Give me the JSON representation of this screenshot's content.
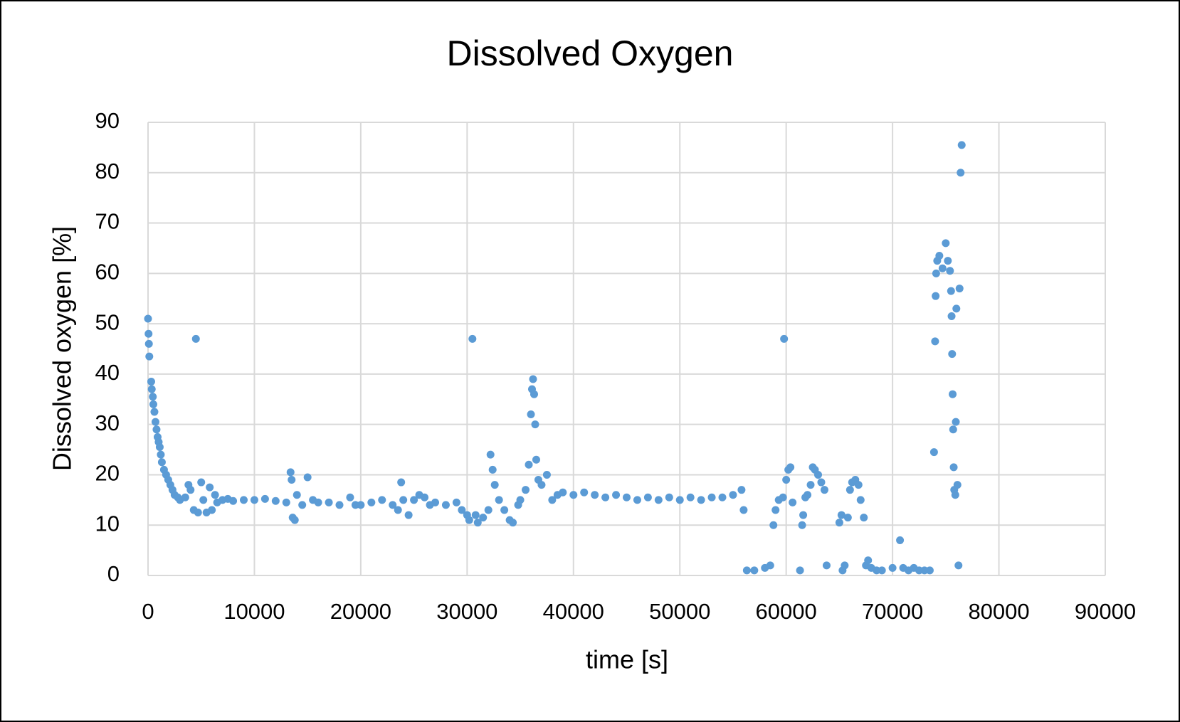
{
  "chart_data": {
    "type": "scatter",
    "title": "Dissolved Oxygen",
    "x_label": "time [s]",
    "y_label": "Dissolved oxygen [%]",
    "color": "#5b9bd5",
    "grid": true,
    "xlim": [
      0,
      90000
    ],
    "xticks": [
      0,
      10000,
      20000,
      30000,
      40000,
      50000,
      60000,
      70000,
      80000,
      90000
    ],
    "ylim": [
      0,
      90
    ],
    "yticks": [
      0,
      10,
      20,
      30,
      40,
      50,
      60,
      70,
      80,
      90
    ],
    "x": [
      0,
      50,
      80,
      120,
      300,
      350,
      450,
      500,
      600,
      700,
      800,
      900,
      1000,
      1100,
      1200,
      1300,
      1500,
      1700,
      1900,
      2100,
      2300,
      2500,
      2800,
      3000,
      3500,
      3800,
      4000,
      4300,
      4500,
      4700,
      5000,
      5200,
      5500,
      5800,
      6000,
      6300,
      6500,
      7000,
      7500,
      8000,
      9000,
      10000,
      11000,
      12000,
      13000,
      13400,
      13500,
      13600,
      13800,
      14000,
      14500,
      15000,
      15500,
      16000,
      17000,
      18000,
      19000,
      19500,
      20000,
      21000,
      22000,
      23000,
      23500,
      23800,
      24000,
      24500,
      25000,
      25500,
      26000,
      26500,
      27000,
      28000,
      29000,
      29500,
      30000,
      30200,
      30500,
      30800,
      31000,
      31500,
      32000,
      32200,
      32400,
      32600,
      33000,
      33500,
      34000,
      34300,
      34800,
      35000,
      35500,
      35800,
      36000,
      36100,
      36200,
      36300,
      36400,
      36500,
      36700,
      37000,
      37500,
      38000,
      38500,
      39000,
      40000,
      41000,
      42000,
      43000,
      44000,
      45000,
      46000,
      47000,
      48000,
      49000,
      50000,
      51000,
      52000,
      53000,
      54000,
      55000,
      55800,
      56000,
      56300,
      57000,
      58000,
      58500,
      58800,
      59000,
      59300,
      59700,
      59800,
      60000,
      60200,
      60400,
      60600,
      61300,
      61500,
      61600,
      61800,
      62000,
      62300,
      62500,
      62700,
      63000,
      63300,
      63600,
      63800,
      65000,
      65200,
      65300,
      65500,
      65800,
      66000,
      66200,
      66500,
      66800,
      67000,
      67300,
      67500,
      67700,
      68000,
      68500,
      69000,
      70000,
      70700,
      71000,
      71500,
      72000,
      72500,
      73000,
      73500,
      73900,
      74000,
      74050,
      74100,
      74200,
      74400,
      74700,
      75000,
      75200,
      75400,
      75500,
      75550,
      75600,
      75650,
      75700,
      75750,
      75800,
      75900,
      75950,
      76000,
      76100,
      76200,
      76300,
      76400,
      76500
    ],
    "values": [
      51,
      48,
      46,
      43.5,
      38.5,
      37,
      35.5,
      34,
      32.5,
      30.5,
      29,
      27.5,
      26.5,
      25.5,
      24,
      22.5,
      21,
      20,
      19,
      18,
      17,
      16,
      15.5,
      15,
      15.5,
      18,
      17,
      13,
      47,
      12.5,
      18.5,
      15,
      12.5,
      17.5,
      13,
      16,
      14.5,
      15,
      15.2,
      14.8,
      15,
      15,
      15.2,
      14.8,
      14.5,
      20.5,
      19,
      11.5,
      11,
      16,
      14,
      19.5,
      15,
      14.5,
      14.5,
      14,
      15.5,
      14,
      14,
      14.5,
      15,
      14,
      13,
      18.5,
      15,
      12,
      15,
      16,
      15.5,
      14,
      14.5,
      14,
      14.5,
      13,
      12,
      11,
      47,
      12,
      10.5,
      11.5,
      13,
      24,
      21,
      18,
      15,
      13,
      11,
      10.5,
      14,
      15,
      17,
      22,
      32,
      37,
      39,
      36,
      30,
      23,
      19,
      18,
      20,
      15,
      16,
      16.5,
      16,
      16.5,
      16,
      15.5,
      16,
      15.5,
      15,
      15.5,
      15,
      15.5,
      15,
      15.5,
      15,
      15.5,
      15.5,
      16,
      17,
      13,
      1,
      1,
      1.5,
      2,
      10,
      13,
      15,
      15.5,
      47,
      19,
      21,
      21.5,
      14.5,
      1,
      10,
      12,
      15.5,
      16,
      18,
      21.5,
      21,
      20,
      18.5,
      17,
      2,
      10.5,
      12,
      1,
      2,
      11.5,
      17,
      18.5,
      19,
      18,
      15,
      11.5,
      2,
      3,
      1.5,
      1,
      1,
      1.5,
      7,
      1.5,
      1,
      1.5,
      1,
      1,
      1,
      24.5,
      46.5,
      55.5,
      60,
      62.5,
      63.5,
      61,
      66,
      62.5,
      60.5,
      56.5,
      51.5,
      44,
      36,
      29,
      21.5,
      17,
      16,
      30.5,
      53,
      18,
      2,
      57,
      80,
      85.5
    ]
  }
}
